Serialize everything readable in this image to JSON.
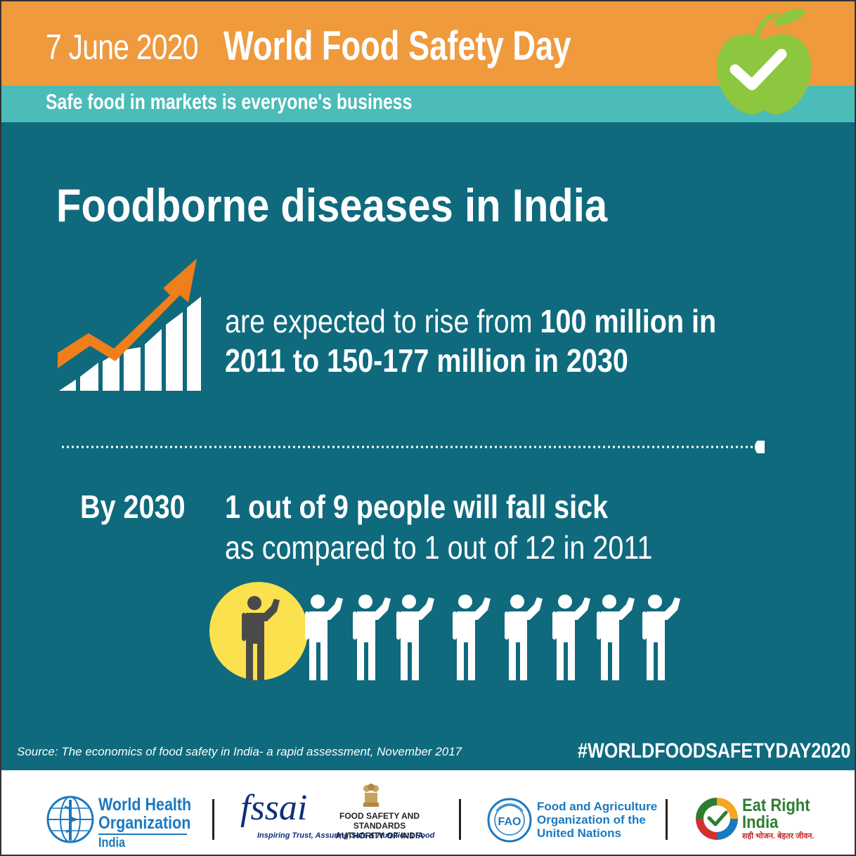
{
  "header": {
    "date": "7 June 2020",
    "title": "World Food Safety Day",
    "subtitle": "Safe food in markets is everyone's business"
  },
  "main": {
    "title": "Foodborne diseases in India",
    "rise_line_1_regular": "are expected to rise from ",
    "rise_line_1_bold": "100 million in",
    "rise_line_2": "2011 to 150-177 million in 2030",
    "by_label": "By 2030",
    "stat_line_1": "1 out of 9 people will fall sick",
    "stat_line_2": "as compared to 1 out of 12 in 2011",
    "people_total": 9,
    "people_highlighted": 1
  },
  "footer": {
    "source": "Source: The economics of food safety in India- a rapid assessment, November 2017",
    "hashtag": "#WORLDFOODSAFETYDAY2020",
    "who_line_1": "World Health",
    "who_line_2": "Organization",
    "who_country": "India",
    "fssai_word": "fssai",
    "fssai_authority_1": "FOOD SAFETY AND STANDARDS",
    "fssai_authority_2": "AUTHORITY OF INDIA",
    "fssai_tagline": "Inspiring Trust, Assuring Safe & Nutritious Food",
    "fao_logo_text": "FAO",
    "fao_line_1": "Food and Agriculture",
    "fao_line_2": "Organization of the",
    "fao_line_3": "United Nations",
    "eri_line_1": "Eat Right",
    "eri_line_2": "India",
    "eri_tagline": "सही भोजन. बेहतर जीवन."
  },
  "colors": {
    "header_orange": "#ef9a3d",
    "subheader_teal": "#4bbcb8",
    "main_teal": "#0f6a7e",
    "arrow_orange": "#ef7f1a",
    "highlight_yellow": "#fbe14d",
    "apple_green": "#8dc63f"
  },
  "icons": [
    "apple-check-icon",
    "rising-chart-icon",
    "person-icon",
    "who-emblem-icon",
    "fssai-emblem-icon",
    "fao-emblem-icon",
    "eat-right-india-icon"
  ]
}
